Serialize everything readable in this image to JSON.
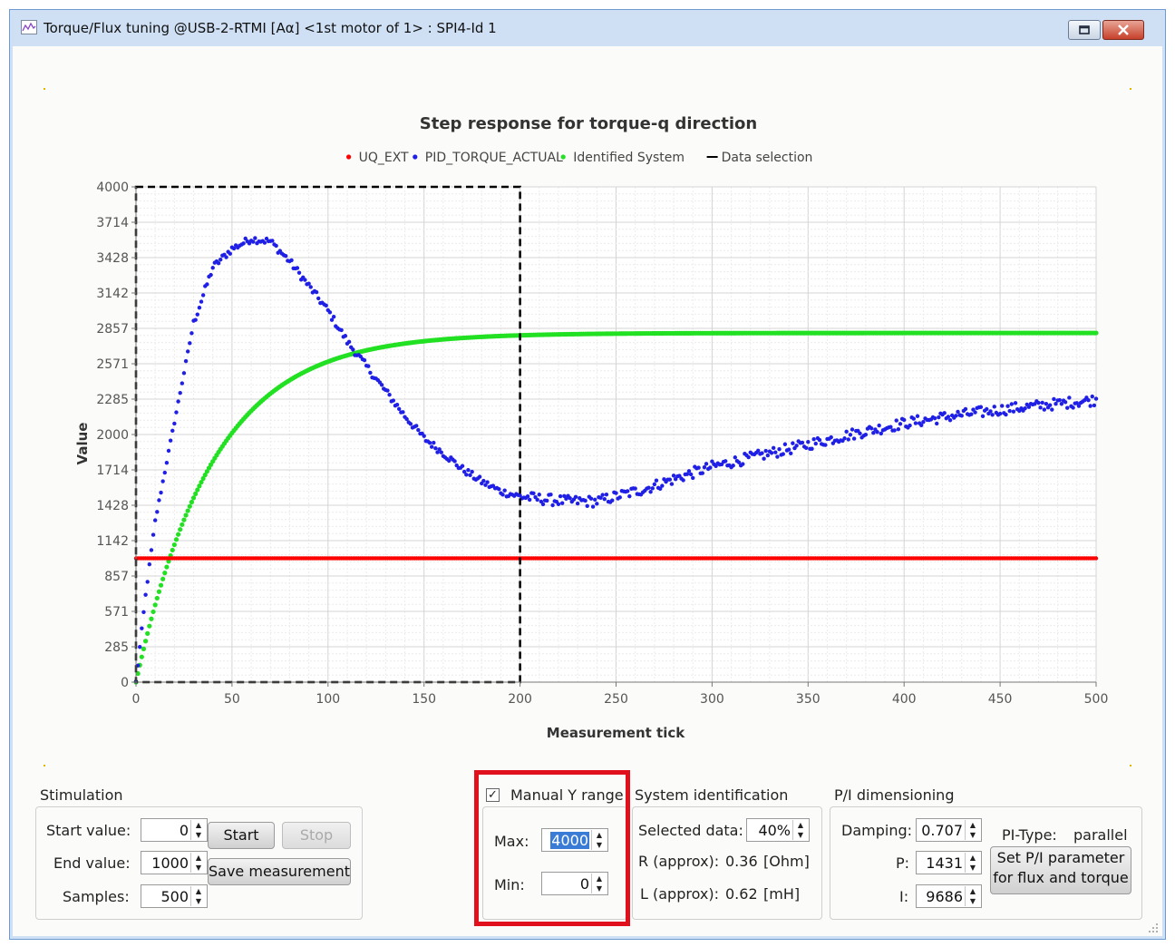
{
  "window": {
    "title": "Torque/Flux tuning @USB-2-RTMI [Aα] <1st motor of 1> : SPI4-Id 1",
    "app_icon": "line-chart-icon",
    "restore_icon": "restore-icon",
    "close_icon": "close-icon"
  },
  "chart_data": {
    "type": "scatter",
    "title": "Step response for torque-q direction",
    "xlabel": "Measurement tick",
    "ylabel": "Value",
    "xlim": [
      0,
      500
    ],
    "ylim": [
      0,
      4000
    ],
    "x_ticks": [
      "0",
      "50",
      "100",
      "150",
      "200",
      "250",
      "300",
      "350",
      "400",
      "450",
      "500"
    ],
    "y_ticks": [
      "0",
      "285",
      "571",
      "857",
      "1142",
      "1428",
      "1714",
      "2000",
      "2285",
      "2571",
      "2857",
      "3142",
      "3428",
      "3714",
      "4000"
    ],
    "grid": true,
    "legend_position": "top",
    "series": [
      {
        "name": "UQ_EXT",
        "color": "#ff0000",
        "marker": "dot",
        "constant": 1000
      },
      {
        "name": "PID_TORQUE_ACTUAL",
        "color": "#1f1fe6",
        "marker": "dot",
        "keypoints": [
          [
            0,
            0
          ],
          [
            5,
            700
          ],
          [
            10,
            1300
          ],
          [
            20,
            2100
          ],
          [
            30,
            2900
          ],
          [
            40,
            3350
          ],
          [
            50,
            3500
          ],
          [
            60,
            3580
          ],
          [
            70,
            3560
          ],
          [
            80,
            3400
          ],
          [
            90,
            3200
          ],
          [
            100,
            3000
          ],
          [
            110,
            2750
          ],
          [
            120,
            2550
          ],
          [
            130,
            2350
          ],
          [
            140,
            2150
          ],
          [
            150,
            1970
          ],
          [
            160,
            1850
          ],
          [
            170,
            1720
          ],
          [
            180,
            1620
          ],
          [
            190,
            1540
          ],
          [
            200,
            1500
          ],
          [
            210,
            1480
          ],
          [
            225,
            1460
          ],
          [
            240,
            1460
          ],
          [
            250,
            1500
          ],
          [
            265,
            1560
          ],
          [
            280,
            1640
          ],
          [
            300,
            1740
          ],
          [
            325,
            1830
          ],
          [
            350,
            1920
          ],
          [
            375,
            2010
          ],
          [
            400,
            2090
          ],
          [
            425,
            2150
          ],
          [
            450,
            2200
          ],
          [
            475,
            2240
          ],
          [
            500,
            2280
          ]
        ]
      },
      {
        "name": "Identified System",
        "color": "#22e022",
        "marker": "dot",
        "final_value": 2820,
        "time_constant": 40
      },
      {
        "name": "Data selection",
        "color": "#000000",
        "marker": "dashed-line",
        "x_range": [
          0,
          200
        ]
      }
    ]
  },
  "stimulation": {
    "group_label": "Stimulation",
    "start_label": "Start value:",
    "start_value": "0",
    "end_label": "End value:",
    "end_value": "1000",
    "samples_label": "Samples:",
    "samples_value": "500",
    "start_button": "Start",
    "stop_button": "Stop",
    "save_button": "Save measurement"
  },
  "manual_y": {
    "label": "Manual Y  range",
    "checked_icon": "checkmark-icon",
    "checked": true,
    "max_label": "Max:",
    "max_value": "4000",
    "min_label": "Min:",
    "min_value": "0",
    "highlight_color": "#e0101c"
  },
  "system_identification": {
    "group_label": "System identification",
    "selected_label": "Selected data:",
    "selected_value": "40%",
    "r_label": "R (approx):",
    "r_value": "0.36",
    "r_unit": "[Ohm]",
    "l_label": "L (approx):",
    "l_value": "0.62",
    "l_unit": "[mH]"
  },
  "pi_dimensioning": {
    "group_label": "P/I dimensioning",
    "damping_label": "Damping:",
    "damping_value": "0.707",
    "p_label": "P:",
    "p_value": "1431",
    "i_label": "I:",
    "i_value": "9686",
    "pi_type_label": "PI-Type:",
    "pi_type_value": "parallel",
    "set_button_line1": "Set P/I parameter",
    "set_button_line2": "for flux and torque"
  },
  "resize_grip_icon": "resize-grip-icon"
}
